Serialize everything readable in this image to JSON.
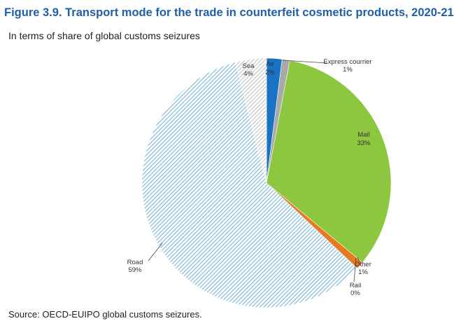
{
  "title": "Figure 3.9. Transport mode for the trade in counterfeit cosmetic products, 2020-21",
  "subtitle": "In terms of share of global customs seizures",
  "source": "Source: OECD-EUIPO global customs seizures.",
  "chart_data": {
    "type": "pie",
    "start": "12 o'clock",
    "direction": "clockwise",
    "slices": [
      {
        "name": "Air",
        "value": 2,
        "label": "2%",
        "color": "#1a72c4",
        "fill": "solid"
      },
      {
        "name": "Express courrier",
        "value": 1,
        "label": "1%",
        "color": "#a9a9a9",
        "fill": "solid"
      },
      {
        "name": "Mail",
        "value": 33,
        "label": "33%",
        "color": "#8dc63f",
        "fill": "solid"
      },
      {
        "name": "Other",
        "value": 1,
        "label": "1%",
        "color": "#e8791e",
        "fill": "solid"
      },
      {
        "name": "Rail",
        "value": 0,
        "label": "0%",
        "color": "#1f4e79",
        "fill": "solid"
      },
      {
        "name": "Road",
        "value": 59,
        "label": "59%",
        "color": "#5aa8d0",
        "fill": "diagonal-hatch"
      },
      {
        "name": "Sea",
        "value": 4,
        "label": "4%",
        "color": "#b5b5b5",
        "fill": "diagonal-hatch"
      }
    ]
  }
}
